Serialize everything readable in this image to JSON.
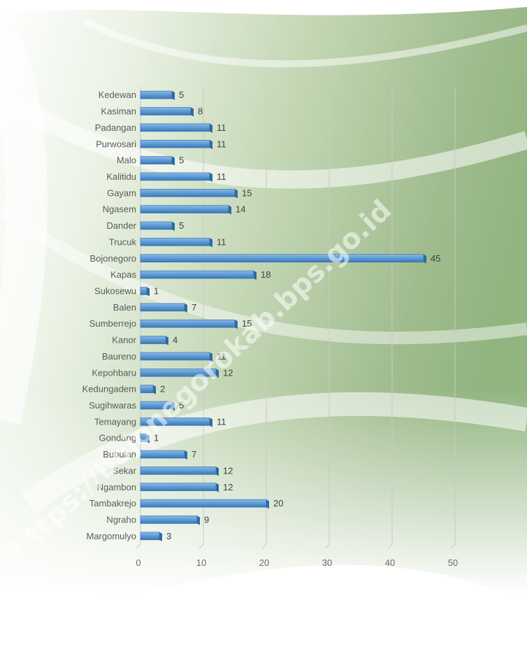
{
  "chart_data": {
    "type": "bar",
    "orientation": "horizontal",
    "categories": [
      "Kedewan",
      "Kasiman",
      "Padangan",
      "Purwosari",
      "Malo",
      "Kalitidu",
      "Gayam",
      "Ngasem",
      "Dander",
      "Trucuk",
      "Bojonegoro",
      "Kapas",
      "Sukosewu",
      "Balen",
      "Sumberrejo",
      "Kanor",
      "Baureno",
      "Kepohbaru",
      "Kedungadem",
      "Sugihwaras",
      "Temayang",
      "Gondang",
      "Bubulan",
      "Sekar",
      "Ngambon",
      "Tambakrejo",
      "Ngraho",
      "Margomulyo"
    ],
    "values": [
      5,
      8,
      11,
      11,
      5,
      11,
      15,
      14,
      5,
      11,
      45,
      18,
      1,
      7,
      15,
      4,
      11,
      12,
      2,
      5,
      11,
      1,
      7,
      12,
      12,
      20,
      9,
      3
    ],
    "xlim": [
      0,
      50
    ],
    "xticks": [
      "0",
      "10",
      "20",
      "30",
      "40",
      "50"
    ],
    "grid": true,
    "bar_color": "#5b9bd5",
    "watermark": "https://bojonegorokab.bps.go.id"
  }
}
